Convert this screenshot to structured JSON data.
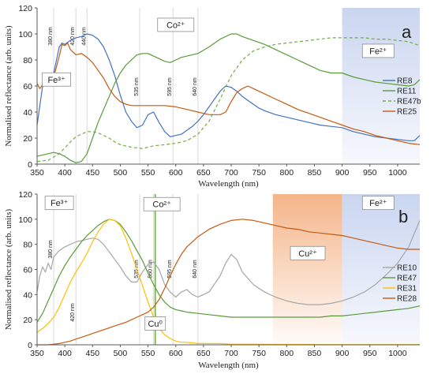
{
  "chart_data": [
    {
      "panel": "a",
      "type": "line",
      "xlabel": "Wavelength (nm)",
      "ylabel": "Normalised reflectance (arb. units)",
      "xlim": [
        350,
        1040
      ],
      "ylim": [
        0,
        120
      ],
      "xticks": [
        350,
        400,
        450,
        500,
        550,
        600,
        650,
        700,
        750,
        800,
        850,
        900,
        950,
        1000
      ],
      "yticks": [
        0,
        20,
        40,
        60,
        80,
        100,
        120
      ],
      "grid": false,
      "legend_position": "right",
      "shaded_bands": [
        {
          "from": 900,
          "to": 1040,
          "color": "#c7d3ef",
          "label": "Fe²⁺"
        }
      ],
      "box_labels": [
        {
          "text": "Fe³⁺",
          "x": 385,
          "y": 65
        },
        {
          "text": "Co²⁺",
          "x": 600,
          "y": 107
        },
        {
          "text": "Fe²⁺",
          "x": 965,
          "y": 87
        }
      ],
      "vlines": [
        {
          "x": 380,
          "label": "380 nm"
        },
        {
          "x": 420,
          "label": "420 nm"
        },
        {
          "x": 440,
          "label": "440 nm"
        },
        {
          "x": 535,
          "label": "535 nm"
        },
        {
          "x": 595,
          "label": "595 nm"
        },
        {
          "x": 640,
          "label": "640 nm"
        }
      ],
      "panel_letter": "a",
      "series": [
        {
          "name": "RE8",
          "color": "#4472c4",
          "dash": "",
          "x": [
            350,
            355,
            360,
            365,
            370,
            375,
            380,
            385,
            390,
            395,
            400,
            410,
            420,
            430,
            440,
            450,
            460,
            470,
            480,
            490,
            500,
            510,
            520,
            530,
            540,
            550,
            560,
            570,
            580,
            590,
            600,
            610,
            620,
            630,
            640,
            650,
            660,
            670,
            680,
            690,
            700,
            710,
            720,
            730,
            740,
            750,
            760,
            780,
            800,
            820,
            840,
            860,
            880,
            900,
            920,
            940,
            960,
            980,
            1000,
            1020,
            1030,
            1040
          ],
          "y": [
            30,
            45,
            60,
            65,
            63,
            68,
            70,
            80,
            90,
            93,
            92,
            95,
            97,
            98,
            100,
            99,
            96,
            90,
            80,
            68,
            53,
            40,
            33,
            28,
            30,
            38,
            40,
            32,
            25,
            21,
            22,
            23,
            26,
            29,
            33,
            38,
            44,
            50,
            56,
            60,
            59,
            56,
            52,
            49,
            46,
            43,
            41,
            38,
            36,
            34,
            32,
            30,
            29,
            28,
            25,
            23,
            21,
            20,
            19,
            18,
            18,
            22
          ]
        },
        {
          "name": "RE11",
          "color": "#5a9a3a",
          "dash": "",
          "x": [
            350,
            360,
            370,
            380,
            390,
            400,
            410,
            420,
            430,
            440,
            450,
            460,
            470,
            480,
            490,
            500,
            510,
            520,
            530,
            540,
            550,
            560,
            570,
            580,
            590,
            600,
            610,
            620,
            640,
            660,
            680,
            700,
            710,
            720,
            740,
            760,
            780,
            800,
            820,
            840,
            860,
            880,
            900,
            920,
            940,
            960,
            980,
            1000,
            1020,
            1030,
            1040
          ],
          "y": [
            6,
            7,
            8,
            9,
            8,
            6,
            3,
            1,
            2,
            8,
            20,
            32,
            42,
            52,
            62,
            70,
            76,
            80,
            84,
            85,
            85,
            83,
            81,
            79,
            78,
            80,
            82,
            83,
            85,
            90,
            96,
            100,
            100,
            98,
            95,
            92,
            88,
            84,
            80,
            76,
            72,
            70,
            70,
            67,
            65,
            63,
            62,
            61,
            60,
            61,
            65
          ]
        },
        {
          "name": "RE47b",
          "color": "#70ad47",
          "dash": "4 3",
          "x": [
            350,
            370,
            390,
            410,
            420,
            430,
            440,
            450,
            460,
            470,
            480,
            490,
            500,
            520,
            540,
            550,
            560,
            580,
            600,
            620,
            640,
            660,
            680,
            700,
            720,
            740,
            760,
            780,
            800,
            820,
            840,
            860,
            880,
            900,
            920,
            940,
            960,
            980,
            1000,
            1020,
            1040
          ],
          "y": [
            2,
            3,
            8,
            17,
            21,
            23,
            25,
            25,
            24,
            22,
            20,
            17,
            15,
            13,
            12,
            13,
            14,
            15,
            16,
            18,
            23,
            33,
            50,
            68,
            80,
            87,
            90,
            92,
            93,
            94,
            95,
            96,
            97,
            97,
            97,
            97,
            96,
            96,
            95,
            94,
            91
          ]
        },
        {
          "name": "RE25",
          "color": "#c55a11",
          "dash": "",
          "x": [
            350,
            355,
            360,
            365,
            370,
            375,
            380,
            385,
            390,
            395,
            400,
            405,
            410,
            420,
            430,
            440,
            450,
            460,
            470,
            480,
            490,
            500,
            510,
            520,
            530,
            540,
            560,
            580,
            600,
            620,
            640,
            660,
            680,
            690,
            700,
            710,
            720,
            730,
            740,
            760,
            780,
            800,
            820,
            840,
            860,
            880,
            900,
            920,
            940,
            960,
            980,
            1000,
            1020,
            1040
          ],
          "y": [
            62,
            58,
            61,
            64,
            62,
            64,
            67,
            75,
            83,
            92,
            91,
            93,
            88,
            84,
            85,
            82,
            78,
            72,
            66,
            58,
            52,
            48,
            46,
            45,
            45,
            45,
            45,
            45,
            44,
            42,
            40,
            38,
            38,
            40,
            48,
            55,
            58,
            60,
            58,
            54,
            50,
            46,
            42,
            39,
            36,
            33,
            30,
            27,
            25,
            22,
            20,
            18,
            16,
            15
          ]
        }
      ]
    },
    {
      "panel": "b",
      "type": "line",
      "xlabel": "Wavelength (nm)",
      "ylabel": "Normalised reflectance (arb. units)",
      "xlim": [
        350,
        1040
      ],
      "ylim": [
        0,
        120
      ],
      "xticks": [
        350,
        400,
        450,
        500,
        550,
        600,
        650,
        700,
        750,
        800,
        850,
        900,
        950,
        1000
      ],
      "yticks": [
        0,
        20,
        40,
        60,
        80,
        100,
        120
      ],
      "grid": false,
      "legend_position": "right",
      "shaded_bands": [
        {
          "from": 775,
          "to": 900,
          "color": "#f4b183",
          "label": "Cu²⁺"
        },
        {
          "from": 900,
          "to": 1040,
          "color": "#c7d3ef",
          "label": "Fe²⁺"
        }
      ],
      "box_labels": [
        {
          "text": "Fe³⁺",
          "x": 390,
          "y": 113
        },
        {
          "text": "Co²⁺",
          "x": 575,
          "y": 112
        },
        {
          "text": "Fe²⁺",
          "x": 965,
          "y": 113
        },
        {
          "text": "Cu²⁺",
          "x": 838,
          "y": 73
        },
        {
          "text": "Cu⁰",
          "x": 563,
          "y": 17
        }
      ],
      "vlines": [
        {
          "x": 380,
          "label": "380 nm"
        },
        {
          "x": 420,
          "label": "420 nm"
        },
        {
          "x": 535,
          "label": "535 nm"
        },
        {
          "x": 560,
          "label": "560 nm"
        },
        {
          "x": 595,
          "label": "595 nm"
        },
        {
          "x": 640,
          "label": "640 nm"
        }
      ],
      "highlight_vline": {
        "x": 563,
        "color": "#70ad47"
      },
      "panel_letter": "b",
      "series": [
        {
          "name": "RE10",
          "color": "#a6a6a6",
          "dash": "",
          "x": [
            350,
            355,
            360,
            365,
            370,
            375,
            380,
            390,
            400,
            410,
            420,
            430,
            440,
            450,
            460,
            470,
            480,
            490,
            500,
            510,
            520,
            530,
            540,
            550,
            560,
            570,
            580,
            590,
            600,
            610,
            620,
            630,
            640,
            660,
            680,
            690,
            700,
            710,
            720,
            740,
            760,
            780,
            800,
            820,
            840,
            860,
            880,
            900,
            920,
            940,
            960,
            980,
            1000,
            1020,
            1040
          ],
          "y": [
            42,
            55,
            62,
            58,
            65,
            60,
            70,
            75,
            78,
            80,
            82,
            83,
            84,
            85,
            84,
            80,
            74,
            68,
            62,
            55,
            50,
            50,
            58,
            64,
            66,
            60,
            48,
            42,
            38,
            42,
            44,
            40,
            38,
            42,
            55,
            65,
            72,
            68,
            58,
            48,
            42,
            38,
            35,
            33,
            32,
            32,
            33,
            35,
            38,
            42,
            48,
            56,
            65,
            78,
            99
          ]
        },
        {
          "name": "RE47",
          "color": "#5a9a3a",
          "dash": "",
          "x": [
            350,
            360,
            370,
            380,
            390,
            400,
            410,
            420,
            430,
            440,
            450,
            460,
            470,
            480,
            490,
            500,
            510,
            520,
            530,
            540,
            550,
            560,
            570,
            580,
            590,
            600,
            610,
            620,
            640,
            660,
            680,
            700,
            720,
            740,
            760,
            780,
            800,
            820,
            840,
            860,
            880,
            900,
            920,
            940,
            960,
            980,
            1000,
            1020,
            1040
          ],
          "y": [
            18,
            25,
            35,
            45,
            55,
            63,
            70,
            76,
            82,
            87,
            91,
            95,
            98,
            100,
            99,
            96,
            90,
            83,
            75,
            67,
            57,
            48,
            40,
            34,
            30,
            28,
            27,
            26,
            25,
            24,
            23,
            22,
            22,
            22,
            22,
            22,
            22,
            22,
            22,
            22,
            23,
            23,
            24,
            25,
            26,
            27,
            28,
            29,
            31
          ]
        },
        {
          "name": "RE31",
          "color": "#ffc000",
          "dash": "",
          "x": [
            350,
            360,
            370,
            380,
            390,
            400,
            410,
            420,
            430,
            440,
            450,
            460,
            470,
            480,
            490,
            500,
            510,
            520,
            530,
            540,
            550,
            560,
            570,
            580,
            590,
            600,
            610,
            620,
            640,
            660,
            680,
            700,
            740,
            780,
            820,
            860,
            900,
            940,
            980,
            1020,
            1040
          ],
          "y": [
            10,
            13,
            17,
            22,
            30,
            40,
            50,
            58,
            65,
            73,
            82,
            90,
            96,
            100,
            99,
            95,
            85,
            73,
            60,
            47,
            34,
            22,
            13,
            8,
            5,
            3,
            2,
            2,
            1,
            1,
            1,
            0.5,
            0.5,
            0.3,
            0.3,
            0.2,
            0.2,
            0.2,
            0.2,
            0.2,
            0.2
          ]
        },
        {
          "name": "RE28",
          "color": "#c55a11",
          "dash": "",
          "x": [
            350,
            370,
            390,
            410,
            430,
            450,
            470,
            490,
            510,
            530,
            550,
            560,
            570,
            580,
            590,
            600,
            610,
            620,
            640,
            660,
            680,
            700,
            720,
            740,
            760,
            780,
            800,
            820,
            840,
            860,
            880,
            900,
            920,
            940,
            960,
            980,
            1000,
            1020,
            1040
          ],
          "y": [
            0,
            0,
            1,
            3,
            6,
            9,
            12,
            15,
            18,
            22,
            26,
            30,
            36,
            45,
            55,
            64,
            72,
            78,
            86,
            92,
            96,
            99,
            100,
            99,
            97,
            95,
            93,
            92,
            90,
            89,
            88,
            87,
            85,
            83,
            81,
            79,
            77,
            76,
            76
          ]
        }
      ]
    }
  ]
}
